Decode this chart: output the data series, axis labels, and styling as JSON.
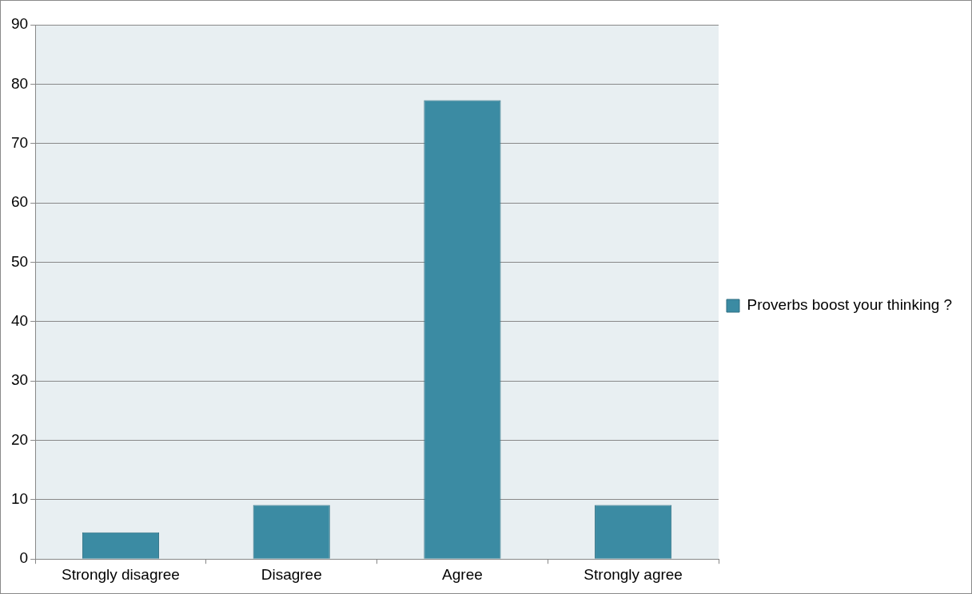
{
  "chart_data": {
    "type": "bar",
    "categories": [
      "Strongly disagree",
      "Disagree",
      "Agree",
      "Strongly agree"
    ],
    "series": [
      {
        "name": "Proverbs boost your thinking ?",
        "color": "#3b8ba3",
        "values": [
          4.5,
          9.1,
          77.3,
          9.1
        ]
      }
    ],
    "ylim": [
      0,
      90
    ],
    "yticks": [
      0,
      10,
      20,
      30,
      40,
      50,
      60,
      70,
      80,
      90
    ],
    "grid": "y",
    "legend": "right"
  }
}
